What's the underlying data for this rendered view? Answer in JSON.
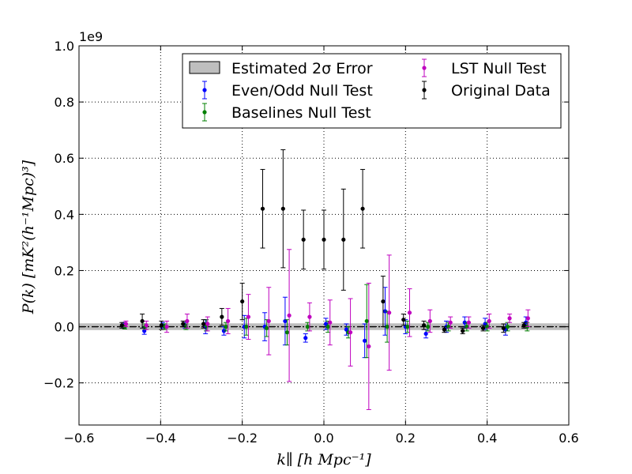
{
  "chart_data": {
    "type": "scatter",
    "xlabel": "k∥ [h Mpc⁻¹]",
    "ylabel": "P(k) [mK²(h⁻¹Mpc)³]",
    "y_offset_label": "1e9",
    "xlim": [
      -0.6,
      0.6
    ],
    "ylim": [
      -0.35,
      1.0
    ],
    "x_ticks": [
      -0.6,
      -0.4,
      -0.2,
      0.0,
      0.2,
      0.4,
      0.6
    ],
    "x_tick_labels": [
      "−0.6",
      "−0.4",
      "−0.2",
      "0.0",
      "0.2",
      "0.4",
      "0.6"
    ],
    "y_ticks": [
      -0.2,
      0.0,
      0.2,
      0.4,
      0.6,
      0.8,
      1.0
    ],
    "y_tick_labels": [
      "−0.2",
      "0.0",
      "0.2",
      "0.4",
      "0.6",
      "0.8",
      "1.0"
    ],
    "grid": true,
    "legend_position": "top-right",
    "band": {
      "name": "Estimated 2σ Error",
      "y_lower": -0.012,
      "y_upper": 0.012,
      "color": "#bebebe"
    },
    "zero_line": {
      "y": 0.0,
      "style": "dash-dot",
      "color": "#000000"
    },
    "legend_items": [
      {
        "label": "Estimated 2σ Error",
        "kind": "band",
        "color": "#bebebe"
      },
      {
        "label": "Even/Odd Null Test",
        "kind": "errorbar",
        "color": "#0000ff"
      },
      {
        "label": "Baselines Null Test",
        "kind": "errorbar",
        "color": "#008000"
      },
      {
        "label": "LST Null Test",
        "kind": "errorbar",
        "color": "#bf00bf"
      },
      {
        "label": "Original Data",
        "kind": "errorbar",
        "color": "#000000"
      }
    ],
    "series": [
      {
        "name": "Even/Odd Null Test",
        "color": "#0000ff",
        "points": [
          {
            "x": -0.49,
            "y": 0.005,
            "err": 0.01
          },
          {
            "x": -0.44,
            "y": -0.015,
            "err": 0.012
          },
          {
            "x": -0.395,
            "y": 0.005,
            "err": 0.01
          },
          {
            "x": -0.34,
            "y": 0.005,
            "err": 0.01
          },
          {
            "x": -0.29,
            "y": 0.0,
            "err": 0.025
          },
          {
            "x": -0.245,
            "y": -0.015,
            "err": 0.015
          },
          {
            "x": -0.195,
            "y": 0.0,
            "err": 0.04
          },
          {
            "x": -0.145,
            "y": 0.0,
            "err": 0.05
          },
          {
            "x": -0.095,
            "y": 0.02,
            "err": 0.085
          },
          {
            "x": -0.045,
            "y": -0.04,
            "err": 0.015
          },
          {
            "x": 0.005,
            "y": 0.01,
            "err": 0.02
          },
          {
            "x": 0.055,
            "y": -0.01,
            "err": 0.02
          },
          {
            "x": 0.1,
            "y": -0.05,
            "err": 0.06
          },
          {
            "x": 0.15,
            "y": 0.055,
            "err": 0.085
          },
          {
            "x": 0.2,
            "y": 0.0,
            "err": 0.025
          },
          {
            "x": 0.25,
            "y": -0.025,
            "err": 0.015
          },
          {
            "x": 0.3,
            "y": 0.0,
            "err": 0.02
          },
          {
            "x": 0.345,
            "y": 0.015,
            "err": 0.02
          },
          {
            "x": 0.395,
            "y": 0.01,
            "err": 0.02
          },
          {
            "x": 0.445,
            "y": -0.01,
            "err": 0.02
          },
          {
            "x": 0.495,
            "y": 0.015,
            "err": 0.02
          }
        ]
      },
      {
        "name": "Baselines Null Test",
        "color": "#008000",
        "points": [
          {
            "x": -0.488,
            "y": 0.0,
            "err": 0.008
          },
          {
            "x": -0.438,
            "y": 0.0,
            "err": 0.01
          },
          {
            "x": -0.39,
            "y": 0.0,
            "err": 0.01
          },
          {
            "x": -0.338,
            "y": 0.0,
            "err": 0.01
          },
          {
            "x": -0.288,
            "y": 0.005,
            "err": 0.02
          },
          {
            "x": -0.24,
            "y": 0.0,
            "err": 0.015
          },
          {
            "x": -0.19,
            "y": 0.0,
            "err": 0.03
          },
          {
            "x": -0.14,
            "y": -0.005,
            "err": 0.03
          },
          {
            "x": -0.09,
            "y": -0.02,
            "err": 0.045
          },
          {
            "x": -0.04,
            "y": 0.0,
            "err": 0.015
          },
          {
            "x": 0.01,
            "y": 0.0,
            "err": 0.02
          },
          {
            "x": 0.06,
            "y": -0.02,
            "err": 0.02
          },
          {
            "x": 0.105,
            "y": 0.02,
            "err": 0.13
          },
          {
            "x": 0.155,
            "y": 0.0,
            "err": 0.055
          },
          {
            "x": 0.205,
            "y": 0.0,
            "err": 0.02
          },
          {
            "x": 0.255,
            "y": 0.0,
            "err": 0.015
          },
          {
            "x": 0.305,
            "y": 0.0,
            "err": 0.015
          },
          {
            "x": 0.35,
            "y": 0.0,
            "err": 0.015
          },
          {
            "x": 0.4,
            "y": 0.0,
            "err": 0.015
          },
          {
            "x": 0.45,
            "y": 0.0,
            "err": 0.015
          },
          {
            "x": 0.498,
            "y": 0.0,
            "err": 0.015
          }
        ]
      },
      {
        "name": "LST Null Test",
        "color": "#bf00bf",
        "points": [
          {
            "x": -0.485,
            "y": 0.01,
            "err": 0.01
          },
          {
            "x": -0.435,
            "y": 0.005,
            "err": 0.015
          },
          {
            "x": -0.385,
            "y": 0.0,
            "err": 0.02
          },
          {
            "x": -0.335,
            "y": 0.02,
            "err": 0.025
          },
          {
            "x": -0.285,
            "y": 0.01,
            "err": 0.025
          },
          {
            "x": -0.235,
            "y": 0.02,
            "err": 0.045
          },
          {
            "x": -0.185,
            "y": 0.035,
            "err": 0.08
          },
          {
            "x": -0.135,
            "y": 0.02,
            "err": 0.12
          },
          {
            "x": -0.085,
            "y": 0.04,
            "err": 0.235
          },
          {
            "x": -0.035,
            "y": 0.035,
            "err": 0.05
          },
          {
            "x": 0.015,
            "y": 0.015,
            "err": 0.08
          },
          {
            "x": 0.065,
            "y": -0.02,
            "err": 0.12
          },
          {
            "x": 0.11,
            "y": -0.07,
            "err": 0.225
          },
          {
            "x": 0.16,
            "y": 0.05,
            "err": 0.205
          },
          {
            "x": 0.21,
            "y": 0.05,
            "err": 0.085
          },
          {
            "x": 0.26,
            "y": 0.02,
            "err": 0.04
          },
          {
            "x": 0.31,
            "y": 0.015,
            "err": 0.02
          },
          {
            "x": 0.355,
            "y": 0.015,
            "err": 0.02
          },
          {
            "x": 0.405,
            "y": 0.02,
            "err": 0.025
          },
          {
            "x": 0.455,
            "y": 0.03,
            "err": 0.015
          },
          {
            "x": 0.5,
            "y": 0.03,
            "err": 0.03
          }
        ]
      },
      {
        "name": "Original Data",
        "color": "#000000",
        "points": [
          {
            "x": -0.495,
            "y": 0.005,
            "err": 0.01
          },
          {
            "x": -0.445,
            "y": 0.02,
            "err": 0.025
          },
          {
            "x": -0.398,
            "y": 0.005,
            "err": 0.015
          },
          {
            "x": -0.345,
            "y": 0.01,
            "err": 0.01
          },
          {
            "x": -0.295,
            "y": 0.01,
            "err": 0.015
          },
          {
            "x": -0.25,
            "y": 0.035,
            "err": 0.03
          },
          {
            "x": -0.2,
            "y": 0.09,
            "err": 0.065
          },
          {
            "x": -0.15,
            "y": 0.42,
            "err": 0.14
          },
          {
            "x": -0.1,
            "y": 0.42,
            "err": 0.21
          },
          {
            "x": -0.05,
            "y": 0.31,
            "err": 0.105
          },
          {
            "x": 0.0,
            "y": 0.31,
            "err": 0.105
          },
          {
            "x": 0.048,
            "y": 0.31,
            "err": 0.18
          },
          {
            "x": 0.095,
            "y": 0.42,
            "err": 0.14
          },
          {
            "x": 0.145,
            "y": 0.09,
            "err": 0.09
          },
          {
            "x": 0.195,
            "y": 0.025,
            "err": 0.02
          },
          {
            "x": 0.245,
            "y": 0.005,
            "err": 0.015
          },
          {
            "x": 0.295,
            "y": -0.01,
            "err": 0.01
          },
          {
            "x": 0.34,
            "y": -0.015,
            "err": 0.01
          },
          {
            "x": 0.39,
            "y": -0.005,
            "err": 0.01
          },
          {
            "x": 0.44,
            "y": -0.005,
            "err": 0.015
          },
          {
            "x": 0.49,
            "y": 0.005,
            "err": 0.01
          }
        ]
      }
    ]
  }
}
